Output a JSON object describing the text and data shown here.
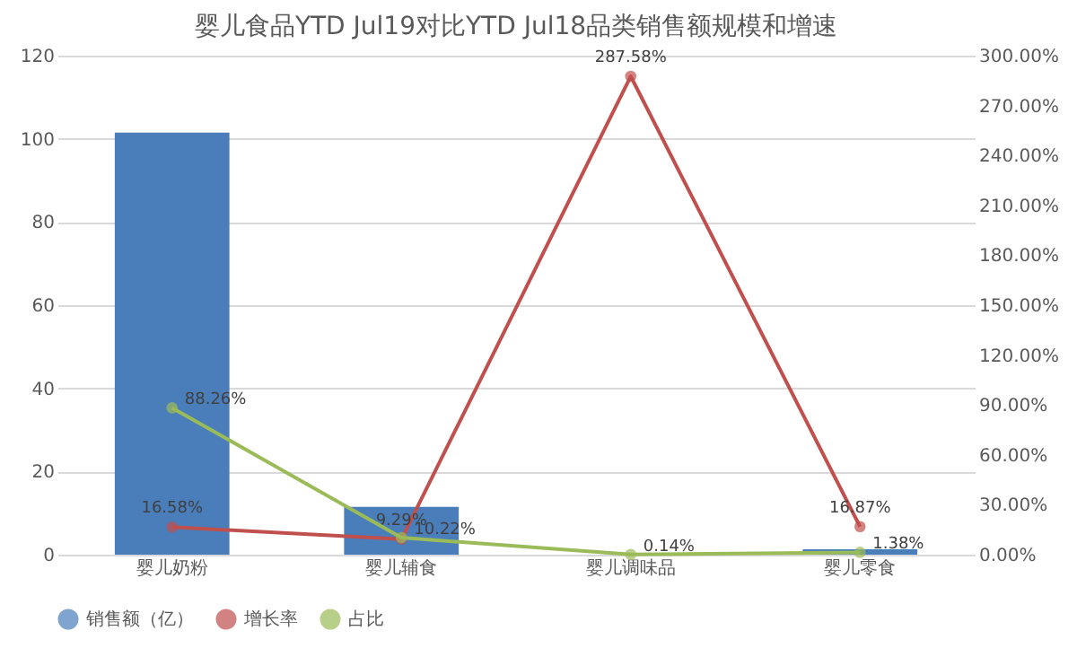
{
  "chart_data": {
    "type": "bar",
    "title": "婴儿食品YTD Jul19对比YTD Jul18品类销售额规模和增速",
    "categories": [
      "婴儿奶粉",
      "婴儿辅食",
      "婴儿调味品",
      "婴儿零食"
    ],
    "series": [
      {
        "name": "销售额（亿）",
        "color": "#4a7ebb",
        "values": [
          101.5,
          11.5,
          null,
          1.3
        ]
      },
      {
        "name": "增长率",
        "type": "line",
        "axis": "y2",
        "color": "#c0504d",
        "values": [
          16.58,
          9.29,
          287.58,
          16.87
        ],
        "value_labels": [
          "16.58%",
          "9.29%",
          "287.58%",
          "16.87%"
        ]
      },
      {
        "name": "占比",
        "type": "line",
        "axis": "y2",
        "color": "#9bbb59",
        "values": [
          88.26,
          10.22,
          0.14,
          1.38
        ],
        "value_labels": [
          "88.26%",
          "10.22%",
          "0.14%",
          "1.38%"
        ]
      }
    ],
    "ylim": [
      0,
      120
    ],
    "yticks": [
      0,
      20,
      40,
      60,
      80,
      100,
      120
    ],
    "y2lim": [
      0,
      300
    ],
    "y2ticks": [
      {
        "value": 0,
        "label": "0.00%"
      },
      {
        "value": 30,
        "label": "30.00%"
      },
      {
        "value": 60,
        "label": "60.00%"
      },
      {
        "value": 90,
        "label": "90.00%"
      },
      {
        "value": 120,
        "label": "120.00%"
      },
      {
        "value": 150,
        "label": "150.00%"
      },
      {
        "value": 180,
        "label": "180.00%"
      },
      {
        "value": 210,
        "label": "210.00%"
      },
      {
        "value": 240,
        "label": "240.00%"
      },
      {
        "value": 270,
        "label": "270.00%"
      },
      {
        "value": 300,
        "label": "300.00%"
      }
    ],
    "grid": "y",
    "legend": "bottom",
    "marker": "circle"
  }
}
